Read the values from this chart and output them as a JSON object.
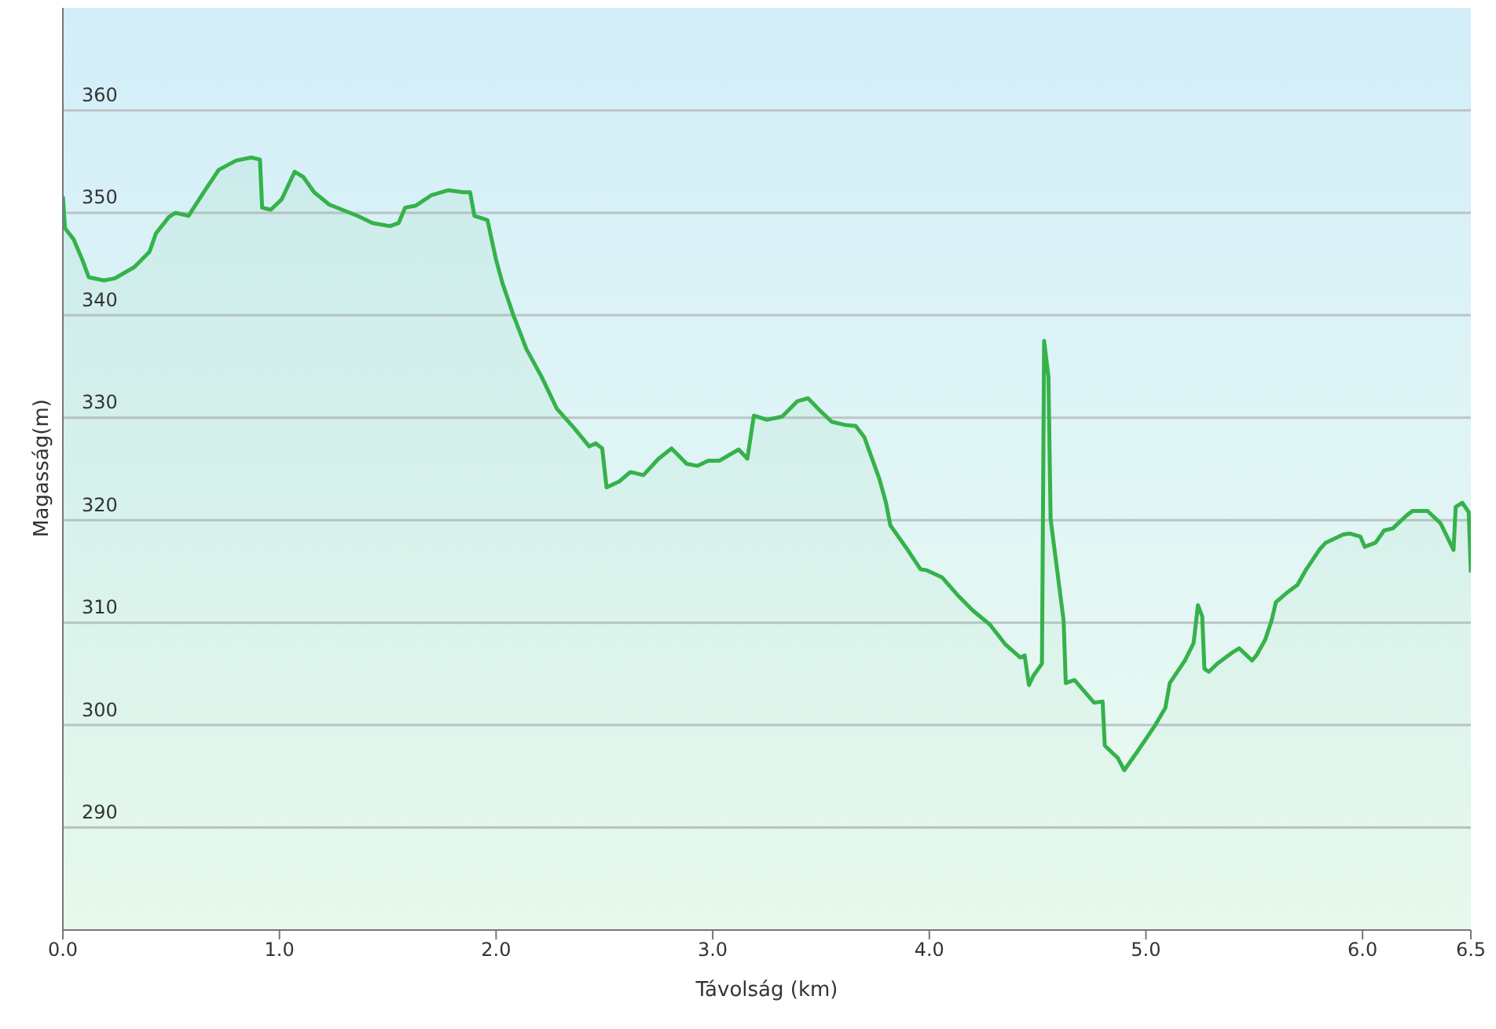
{
  "chart_data": {
    "type": "area",
    "xlabel": "Távolság  (km)",
    "ylabel": "Magasság(m)",
    "xlim": [
      0,
      6.5
    ],
    "xticks": [
      {
        "value": 0,
        "label": "0.0"
      },
      {
        "value": 1,
        "label": "1.0"
      },
      {
        "value": 2,
        "label": "2.0"
      },
      {
        "value": 3,
        "label": "3.0"
      },
      {
        "value": 4,
        "label": "4.0"
      },
      {
        "value": 5,
        "label": "5.0"
      },
      {
        "value": 6,
        "label": "6.0"
      },
      6.5
    ],
    "ylim": [
      280,
      370
    ],
    "yticks": [
      290,
      300,
      310,
      320,
      330,
      340,
      350,
      360
    ],
    "grid": "y",
    "legend": false,
    "marker": "none",
    "line_style": "solid",
    "series": [
      {
        "color": "#35b24a",
        "x": [
          0,
          0.01,
          0.05,
          0.09,
          0.12,
          0.19,
          0.24,
          0.33,
          0.4,
          0.43,
          0.49,
          0.52,
          0.58,
          0.65,
          0.72,
          0.8,
          0.87,
          0.91,
          0.92,
          0.96,
          1.01,
          1.07,
          1.11,
          1.16,
          1.23,
          1.36,
          1.43,
          1.51,
          1.55,
          1.58,
          1.63,
          1.7,
          1.78,
          1.85,
          1.88,
          1.9,
          1.96,
          2,
          2.03,
          2.08,
          2.14,
          2.21,
          2.28,
          2.36,
          2.43,
          2.46,
          2.49,
          2.51,
          2.57,
          2.62,
          2.68,
          2.75,
          2.81,
          2.88,
          2.93,
          2.98,
          3.03,
          3.12,
          3.16,
          3.19,
          3.25,
          3.32,
          3.39,
          3.44,
          3.49,
          3.55,
          3.61,
          3.66,
          3.7,
          3.77,
          3.8,
          3.82,
          3.9,
          3.96,
          3.99,
          4.06,
          4.13,
          4.2,
          4.28,
          4.35,
          4.42,
          4.44,
          4.46,
          4.48,
          4.52,
          4.53,
          4.55,
          4.56,
          4.62,
          4.63,
          4.67,
          4.76,
          4.8,
          4.81,
          4.87,
          4.9,
          4.96,
          5.04,
          5.09,
          5.11,
          5.18,
          5.22,
          5.24,
          5.26,
          5.27,
          5.29,
          5.33,
          5.4,
          5.43,
          5.49,
          5.51,
          5.55,
          5.58,
          5.6,
          5.65,
          5.7,
          5.74,
          5.8,
          5.83,
          5.91,
          5.94,
          5.99,
          6.01,
          6.06,
          6.1,
          6.14,
          6.2,
          6.23,
          6.3,
          6.36,
          6.42,
          6.43,
          6.46,
          6.49,
          6.5
        ],
        "values": [
          351.6,
          348.5,
          347.4,
          345.4,
          343.7,
          343.4,
          343.6,
          344.7,
          346.2,
          348,
          349.6,
          350,
          349.7,
          352,
          354.2,
          355.1,
          355.4,
          355.2,
          350.5,
          350.3,
          351.3,
          354,
          353.5,
          352,
          350.8,
          349.7,
          349,
          348.7,
          349,
          350.5,
          350.7,
          351.7,
          352.2,
          352,
          352,
          349.7,
          349.3,
          345.4,
          343.1,
          340,
          336.7,
          334,
          330.9,
          329,
          327.2,
          327.5,
          327,
          323.2,
          323.8,
          324.7,
          324.4,
          326,
          327,
          325.5,
          325.3,
          325.8,
          325.8,
          326.9,
          326,
          330.2,
          329.8,
          330.1,
          331.6,
          331.9,
          330.8,
          329.6,
          329.3,
          329.2,
          328.1,
          324,
          321.7,
          319.5,
          317.1,
          315.2,
          315.1,
          314.4,
          312.7,
          311.2,
          309.8,
          307.9,
          306.6,
          306.8,
          303.9,
          304.8,
          306,
          337.5,
          334,
          320.1,
          310.2,
          304.1,
          304.4,
          302.2,
          302.3,
          298,
          296.8,
          295.6,
          297.4,
          299.9,
          301.7,
          304.1,
          306.3,
          308,
          311.7,
          310.6,
          305.5,
          305.2,
          306,
          307.1,
          307.5,
          306.3,
          306.8,
          308.3,
          310.2,
          312,
          312.9,
          313.7,
          315.2,
          317.1,
          317.8,
          318.6,
          318.7,
          318.4,
          317.4,
          317.8,
          319,
          319.2,
          320.4,
          320.9,
          320.9,
          319.7,
          317.1,
          321.3,
          321.7,
          320.8,
          314.9
        ]
      }
    ]
  }
}
